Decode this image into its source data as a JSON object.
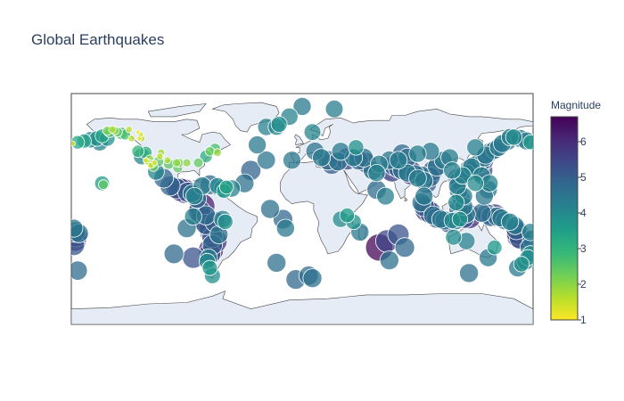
{
  "chart_data": {
    "type": "scatter",
    "subtype": "scatter-geo",
    "title": "Global Earthquakes",
    "projection": "equirectangular",
    "lon_range": [
      -180,
      180
    ],
    "lat_range": [
      -90,
      90
    ],
    "land_color": "#e5ecf6",
    "coast_color": "#444444",
    "marker_opacity": 0.75,
    "marker_line_color": "#ffffff",
    "colorbar": {
      "title": "Magnitude",
      "tick_labels": [
        "1",
        "2",
        "3",
        "4",
        "5",
        "6"
      ],
      "range": [
        1,
        6.7
      ],
      "colorscale": [
        "#fde725",
        "#b5de2b",
        "#6ece58",
        "#35b779",
        "#1f9e89",
        "#26828e",
        "#31688e",
        "#3e4989",
        "#482878",
        "#440154"
      ]
    },
    "points": [
      {
        "lon": -152,
        "lat": 61,
        "mag": 2.2
      },
      {
        "lon": -150,
        "lat": 60,
        "mag": 2.6
      },
      {
        "lon": -148,
        "lat": 62,
        "mag": 1.8
      },
      {
        "lon": -146,
        "lat": 61,
        "mag": 2.0
      },
      {
        "lon": -144,
        "lat": 60,
        "mag": 2.4
      },
      {
        "lon": -141,
        "lat": 59,
        "mag": 3.0
      },
      {
        "lon": -138,
        "lat": 58,
        "mag": 2.6
      },
      {
        "lon": -135,
        "lat": 62,
        "mag": 1.6
      },
      {
        "lon": -133,
        "lat": 55,
        "mag": 1.6
      },
      {
        "lon": -127,
        "lat": 55,
        "mag": 1.2
      },
      {
        "lon": -126,
        "lat": 58,
        "mag": 1.4
      },
      {
        "lon": -125,
        "lat": 55,
        "mag": 1.6
      },
      {
        "lon": -128,
        "lat": 60,
        "mag": 1.1
      },
      {
        "lon": -156,
        "lat": 57,
        "mag": 3.4
      },
      {
        "lon": -160,
        "lat": 55,
        "mag": 3.8
      },
      {
        "lon": -165,
        "lat": 54,
        "mag": 4.0
      },
      {
        "lon": -170,
        "lat": 53,
        "mag": 3.5
      },
      {
        "lon": -175,
        "lat": 52,
        "mag": 3.3
      },
      {
        "lon": -179,
        "lat": 51,
        "mag": 1.3
      },
      {
        "lon": -158,
        "lat": 52,
        "mag": 4.2
      },
      {
        "lon": -152,
        "lat": 55,
        "mag": 3.8
      },
      {
        "lon": -122,
        "lat": 38,
        "mag": 1.3
      },
      {
        "lon": -121,
        "lat": 37,
        "mag": 1.6
      },
      {
        "lon": -118,
        "lat": 34,
        "mag": 1.5
      },
      {
        "lon": -117,
        "lat": 35,
        "mag": 1.9
      },
      {
        "lon": -116,
        "lat": 33,
        "mag": 2.3
      },
      {
        "lon": -115,
        "lat": 36,
        "mag": 1.4
      },
      {
        "lon": -119,
        "lat": 39,
        "mag": 2.0
      },
      {
        "lon": -112,
        "lat": 37,
        "mag": 2.5
      },
      {
        "lon": -111,
        "lat": 41,
        "mag": 1.6
      },
      {
        "lon": -110,
        "lat": 44,
        "mag": 1.8
      },
      {
        "lon": -105,
        "lat": 38,
        "mag": 1.7
      },
      {
        "lon": -104,
        "lat": 35,
        "mag": 2.5
      },
      {
        "lon": -98,
        "lat": 36,
        "mag": 2.0
      },
      {
        "lon": -97,
        "lat": 32,
        "mag": 2.4
      },
      {
        "lon": -96,
        "lat": 36,
        "mag": 2.2
      },
      {
        "lon": -90,
        "lat": 36,
        "mag": 2.0
      },
      {
        "lon": -81,
        "lat": 36,
        "mag": 2.4
      },
      {
        "lon": -75,
        "lat": 41,
        "mag": 3.1
      },
      {
        "lon": -72,
        "lat": 45,
        "mag": 2.3
      },
      {
        "lon": -68,
        "lat": 47,
        "mag": 2.7
      },
      {
        "lon": -66,
        "lat": 44,
        "mag": 1.9
      },
      {
        "lon": -125,
        "lat": 41,
        "mag": 4.1
      },
      {
        "lon": -128,
        "lat": 45,
        "mag": 3.0
      },
      {
        "lon": -122,
        "lat": 44,
        "mag": 3.1
      },
      {
        "lon": -155,
        "lat": 19,
        "mag": 2.4
      },
      {
        "lon": -156,
        "lat": 20,
        "mag": 3.6
      },
      {
        "lon": -114,
        "lat": 29,
        "mag": 4.1
      },
      {
        "lon": -108,
        "lat": 24,
        "mag": 4.8
      },
      {
        "lon": -103,
        "lat": 18,
        "mag": 4.9
      },
      {
        "lon": -98,
        "lat": 16,
        "mag": 5.1
      },
      {
        "lon": -95,
        "lat": 15,
        "mag": 5.7
      },
      {
        "lon": -92,
        "lat": 14,
        "mag": 6.0
      },
      {
        "lon": -89,
        "lat": 13,
        "mag": 5.0
      },
      {
        "lon": -86,
        "lat": 12,
        "mag": 4.4
      },
      {
        "lon": -84,
        "lat": 10,
        "mag": 4.2
      },
      {
        "lon": -82,
        "lat": 8,
        "mag": 4.6
      },
      {
        "lon": -78,
        "lat": 18,
        "mag": 4.4
      },
      {
        "lon": -72,
        "lat": 19,
        "mag": 4.8
      },
      {
        "lon": -66,
        "lat": 18,
        "mag": 4.0
      },
      {
        "lon": -62,
        "lat": 16,
        "mag": 4.3
      },
      {
        "lon": -61,
        "lat": 14,
        "mag": 3.6
      },
      {
        "lon": -59,
        "lat": 17,
        "mag": 3.4
      },
      {
        "lon": -78,
        "lat": 2,
        "mag": 6.2
      },
      {
        "lon": -80,
        "lat": -2,
        "mag": 5.5
      },
      {
        "lon": -77,
        "lat": -8,
        "mag": 5.8
      },
      {
        "lon": -75,
        "lat": -12,
        "mag": 5.0
      },
      {
        "lon": -72,
        "lat": -15,
        "mag": 5.4
      },
      {
        "lon": -71,
        "lat": -18,
        "mag": 5.6
      },
      {
        "lon": -70,
        "lat": -22,
        "mag": 5.1
      },
      {
        "lon": -68,
        "lat": -25,
        "mag": 5.9
      },
      {
        "lon": -70,
        "lat": -28,
        "mag": 4.9
      },
      {
        "lon": -71,
        "lat": -32,
        "mag": 6.1
      },
      {
        "lon": -72,
        "lat": -35,
        "mag": 5.3
      },
      {
        "lon": -73,
        "lat": -38,
        "mag": 4.3
      },
      {
        "lon": -74,
        "lat": -41,
        "mag": 4.0
      },
      {
        "lon": -72,
        "lat": -46,
        "mag": 3.7
      },
      {
        "lon": -70,
        "lat": -52,
        "mag": 3.9
      },
      {
        "lon": -75,
        "lat": -5,
        "mag": 4.7
      },
      {
        "lon": -68,
        "lat": -10,
        "mag": 5.0
      },
      {
        "lon": -62,
        "lat": -8,
        "mag": 4.3
      },
      {
        "lon": -65,
        "lat": -20,
        "mag": 4.5
      },
      {
        "lon": -60,
        "lat": -10,
        "mag": 3.8
      },
      {
        "lon": -85,
        "lat": -6,
        "mag": 4.2
      },
      {
        "lon": -90,
        "lat": -15,
        "mag": 4.6
      },
      {
        "lon": -100,
        "lat": -35,
        "mag": 4.8
      },
      {
        "lon": -85,
        "lat": -38,
        "mag": 5.2
      },
      {
        "lon": -178,
        "lat": -15,
        "mag": 4.4
      },
      {
        "lon": -177,
        "lat": -18,
        "mag": 5.0
      },
      {
        "lon": -176,
        "lat": -21,
        "mag": 5.4
      },
      {
        "lon": -177,
        "lat": -24,
        "mag": 5.6
      },
      {
        "lon": -178,
        "lat": -28,
        "mag": 5.2
      },
      {
        "lon": -174,
        "lat": -19,
        "mag": 4.6
      },
      {
        "lon": -175,
        "lat": -48,
        "mag": 4.7
      },
      {
        "lon": -55,
        "lat": 16,
        "mag": 4.2
      },
      {
        "lon": -45,
        "lat": 20,
        "mag": 4.6
      },
      {
        "lon": -40,
        "lat": 30,
        "mag": 4.9
      },
      {
        "lon": -28,
        "lat": 38,
        "mag": 4.5
      },
      {
        "lon": -35,
        "lat": 50,
        "mag": 4.4
      },
      {
        "lon": -28,
        "lat": 64,
        "mag": 4.2
      },
      {
        "lon": -18,
        "lat": 66,
        "mag": 3.9
      },
      {
        "lon": -20,
        "lat": 64,
        "mag": 4.1
      },
      {
        "lon": -25,
        "lat": 0,
        "mag": 4.6
      },
      {
        "lon": -15,
        "lat": -8,
        "mag": 4.8
      },
      {
        "lon": -13,
        "lat": -15,
        "mag": 4.4
      },
      {
        "lon": -20,
        "lat": -42,
        "mag": 4.6
      },
      {
        "lon": -5,
        "lat": -55,
        "mag": 4.8
      },
      {
        "lon": 5,
        "lat": -52,
        "mag": 4.7
      },
      {
        "lon": 8,
        "lat": -54,
        "mag": 4.6
      },
      {
        "lon": -10,
        "lat": 72,
        "mag": 4.2
      },
      {
        "lon": 0,
        "lat": 80,
        "mag": 4.4
      },
      {
        "lon": 25,
        "lat": 78,
        "mag": 4.3
      },
      {
        "lon": 10,
        "lat": 45,
        "mag": 4.5
      },
      {
        "lon": 15,
        "lat": 40,
        "mag": 4.4
      },
      {
        "lon": 20,
        "lat": 38,
        "mag": 4.8
      },
      {
        "lon": 23,
        "lat": 35,
        "mag": 5.0
      },
      {
        "lon": 28,
        "lat": 37,
        "mag": 4.6
      },
      {
        "lon": 35,
        "lat": 39,
        "mag": 5.4
      },
      {
        "lon": 40,
        "lat": 40,
        "mag": 4.4
      },
      {
        "lon": 44,
        "lat": 38,
        "mag": 4.8
      },
      {
        "lon": 50,
        "lat": 36,
        "mag": 5.0
      },
      {
        "lon": 55,
        "lat": 30,
        "mag": 4.6
      },
      {
        "lon": 58,
        "lat": 28,
        "mag": 4.2
      },
      {
        "lon": 60,
        "lat": 35,
        "mag": 4.3
      },
      {
        "lon": 42,
        "lat": 48,
        "mag": 3.8
      },
      {
        "lon": 8,
        "lat": 60,
        "mag": 4.1
      },
      {
        "lon": -8,
        "lat": 38,
        "mag": 4.4
      },
      {
        "lon": 30,
        "lat": 45,
        "mag": 4.4
      },
      {
        "lon": 48,
        "lat": 40,
        "mag": 4.6
      },
      {
        "lon": 58,
        "lat": 15,
        "mag": 4.7
      },
      {
        "lon": 65,
        "lat": 10,
        "mag": 4.3
      },
      {
        "lon": 35,
        "lat": -5,
        "mag": 3.6
      },
      {
        "lon": 30,
        "lat": -8,
        "mag": 4.0
      },
      {
        "lon": 40,
        "lat": -10,
        "mag": 3.8
      },
      {
        "lon": 45,
        "lat": -18,
        "mag": 4.4
      },
      {
        "lon": 66,
        "lat": -25,
        "mag": 5.5
      },
      {
        "lon": 75,
        "lat": -20,
        "mag": 5.2
      },
      {
        "lon": 60,
        "lat": -30,
        "mag": 6.6
      },
      {
        "lon": 80,
        "lat": -30,
        "mag": 4.8
      },
      {
        "lon": 68,
        "lat": -40,
        "mag": 4.6
      },
      {
        "lon": 70,
        "lat": 30,
        "mag": 5.6
      },
      {
        "lon": 72,
        "lat": 34,
        "mag": 5.2
      },
      {
        "lon": 75,
        "lat": 32,
        "mag": 4.9
      },
      {
        "lon": 78,
        "lat": 30,
        "mag": 4.6
      },
      {
        "lon": 82,
        "lat": 28,
        "mag": 4.4
      },
      {
        "lon": 85,
        "lat": 28,
        "mag": 5.8
      },
      {
        "lon": 88,
        "lat": 27,
        "mag": 4.6
      },
      {
        "lon": 90,
        "lat": 24,
        "mag": 4.3
      },
      {
        "lon": 93,
        "lat": 26,
        "mag": 4.7
      },
      {
        "lon": 95,
        "lat": 22,
        "mag": 4.4
      },
      {
        "lon": 97,
        "lat": 20,
        "mag": 5.0
      },
      {
        "lon": 100,
        "lat": 25,
        "mag": 4.8
      },
      {
        "lon": 102,
        "lat": 30,
        "mag": 5.0
      },
      {
        "lon": 105,
        "lat": 33,
        "mag": 4.6
      },
      {
        "lon": 82,
        "lat": 40,
        "mag": 4.6
      },
      {
        "lon": 75,
        "lat": 38,
        "mag": 4.3
      },
      {
        "lon": 90,
        "lat": 43,
        "mag": 4.2
      },
      {
        "lon": 78,
        "lat": 43,
        "mag": 4.8
      },
      {
        "lon": 68,
        "lat": 38,
        "mag": 4.5
      },
      {
        "lon": 95,
        "lat": 10,
        "mag": 4.4
      },
      {
        "lon": 93,
        "lat": 5,
        "mag": 4.6
      },
      {
        "lon": 95,
        "lat": 2,
        "mag": 5.0
      },
      {
        "lon": 97,
        "lat": -1,
        "mag": 5.7
      },
      {
        "lon": 100,
        "lat": -3,
        "mag": 5.4
      },
      {
        "lon": 102,
        "lat": -5,
        "mag": 4.6
      },
      {
        "lon": 105,
        "lat": -7,
        "mag": 5.0
      },
      {
        "lon": 108,
        "lat": -8,
        "mag": 4.4
      },
      {
        "lon": 111,
        "lat": -9,
        "mag": 4.6
      },
      {
        "lon": 114,
        "lat": -10,
        "mag": 5.3
      },
      {
        "lon": 117,
        "lat": -9,
        "mag": 4.0
      },
      {
        "lon": 120,
        "lat": -9,
        "mag": 4.5
      },
      {
        "lon": 123,
        "lat": -8,
        "mag": 3.8
      },
      {
        "lon": 126,
        "lat": -7,
        "mag": 5.1
      },
      {
        "lon": 128,
        "lat": -4,
        "mag": 4.4
      },
      {
        "lon": 130,
        "lat": -6,
        "mag": 5.9
      },
      {
        "lon": 126,
        "lat": 2,
        "mag": 4.4
      },
      {
        "lon": 122,
        "lat": 0,
        "mag": 4.8
      },
      {
        "lon": 120,
        "lat": 5,
        "mag": 4.0
      },
      {
        "lon": 124,
        "lat": 8,
        "mag": 4.5
      },
      {
        "lon": 126,
        "lat": 10,
        "mag": 4.3
      },
      {
        "lon": 122,
        "lat": 14,
        "mag": 4.5
      },
      {
        "lon": 121,
        "lat": 18,
        "mag": 4.3
      },
      {
        "lon": 122,
        "lat": 22,
        "mag": 4.6
      },
      {
        "lon": 121,
        "lat": 24,
        "mag": 4.8
      },
      {
        "lon": 125,
        "lat": 26,
        "mag": 4.2
      },
      {
        "lon": 128,
        "lat": 28,
        "mag": 4.4
      },
      {
        "lon": 130,
        "lat": 31,
        "mag": 4.6
      },
      {
        "lon": 132,
        "lat": 33,
        "mag": 4.3
      },
      {
        "lon": 135,
        "lat": 34,
        "mag": 4.6
      },
      {
        "lon": 139,
        "lat": 36,
        "mag": 4.8
      },
      {
        "lon": 141,
        "lat": 38,
        "mag": 5.2
      },
      {
        "lon": 142,
        "lat": 40,
        "mag": 4.5
      },
      {
        "lon": 143,
        "lat": 42,
        "mag": 4.4
      },
      {
        "lon": 146,
        "lat": 44,
        "mag": 4.6
      },
      {
        "lon": 150,
        "lat": 46,
        "mag": 4.5
      },
      {
        "lon": 153,
        "lat": 48,
        "mag": 4.4
      },
      {
        "lon": 156,
        "lat": 51,
        "mag": 4.4
      },
      {
        "lon": 160,
        "lat": 53,
        "mag": 4.6
      },
      {
        "lon": 162,
        "lat": 56,
        "mag": 4.2
      },
      {
        "lon": 165,
        "lat": 56,
        "mag": 4.0
      },
      {
        "lon": 170,
        "lat": 55,
        "mag": 4.4
      },
      {
        "lon": 175,
        "lat": 53,
        "mag": 4.4
      },
      {
        "lon": 178,
        "lat": 52,
        "mag": 3.6
      },
      {
        "lon": 142,
        "lat": 10,
        "mag": 4.4
      },
      {
        "lon": 145,
        "lat": 15,
        "mag": 4.5
      },
      {
        "lon": 146,
        "lat": 20,
        "mag": 4.2
      },
      {
        "lon": 140,
        "lat": 26,
        "mag": 4.3
      },
      {
        "lon": 140,
        "lat": 30,
        "mag": 5.4
      },
      {
        "lon": 135,
        "lat": 20,
        "mag": 4.0
      },
      {
        "lon": 140,
        "lat": -3,
        "mag": 4.6
      },
      {
        "lon": 144,
        "lat": -4,
        "mag": 5.0
      },
      {
        "lon": 147,
        "lat": -6,
        "mag": 4.8
      },
      {
        "lon": 150,
        "lat": -5,
        "mag": 5.6
      },
      {
        "lon": 152,
        "lat": -6,
        "mag": 4.7
      },
      {
        "lon": 155,
        "lat": -7,
        "mag": 4.4
      },
      {
        "lon": 158,
        "lat": -9,
        "mag": 4.5
      },
      {
        "lon": 162,
        "lat": -10,
        "mag": 4.2
      },
      {
        "lon": 166,
        "lat": -13,
        "mag": 4.4
      },
      {
        "lon": 167,
        "lat": -16,
        "mag": 5.0
      },
      {
        "lon": 168,
        "lat": -19,
        "mag": 5.5
      },
      {
        "lon": 169,
        "lat": -21,
        "mag": 6.0
      },
      {
        "lon": 170,
        "lat": -23,
        "mag": 5.2
      },
      {
        "lon": 178,
        "lat": -18,
        "mag": 4.2
      },
      {
        "lon": 179,
        "lat": -24,
        "mag": 4.6
      },
      {
        "lon": 177,
        "lat": -30,
        "mag": 4.5
      },
      {
        "lon": 176,
        "lat": -38,
        "mag": 3.9
      },
      {
        "lon": 174,
        "lat": -41,
        "mag": 4.2
      },
      {
        "lon": 171,
        "lat": -43,
        "mag": 3.8
      },
      {
        "lon": 168,
        "lat": -46,
        "mag": 4.4
      },
      {
        "lon": 178,
        "lat": -35,
        "mag": 4.0
      },
      {
        "lon": 128,
        "lat": -25,
        "mag": 4.2
      },
      {
        "lon": 118,
        "lat": -22,
        "mag": 3.9
      },
      {
        "lon": 145,
        "lat": -38,
        "mag": 4.4
      },
      {
        "lon": 150,
        "lat": -30,
        "mag": 3.6
      },
      {
        "lon": 130,
        "lat": -50,
        "mag": 4.6
      },
      {
        "lon": 135,
        "lat": 48,
        "mag": 4.2
      },
      {
        "lon": 110,
        "lat": 38,
        "mag": 4.4
      },
      {
        "lon": 115,
        "lat": 40,
        "mag": 4.3
      },
      {
        "lon": 100,
        "lat": 45,
        "mag": 4.4
      },
      {
        "lon": 117,
        "lat": 30,
        "mag": 4.2
      }
    ]
  }
}
